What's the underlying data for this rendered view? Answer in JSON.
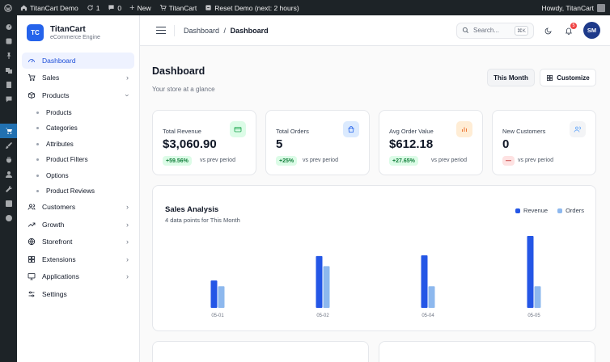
{
  "adminbar": {
    "site_name": "TitanCart Demo",
    "updates_count": "1",
    "comments_count": "0",
    "new_label": "New",
    "titancart_label": "TitanCart",
    "reset_label": "Reset Demo (next: 2 hours)",
    "howdy": "Howdy, TitanCart"
  },
  "wprail": {
    "icons": [
      "dashboard-icon",
      "site-icon",
      "pin-icon",
      "media-icon",
      "pages-icon",
      "comments-icon",
      "cart-icon",
      "brush-icon",
      "plugins-icon",
      "users-icon",
      "tools-icon",
      "settings-icon",
      "play-icon"
    ],
    "active_index": 6
  },
  "brand": {
    "logo": "TC",
    "name": "TitanCart",
    "subtitle": "eCommerce Engine"
  },
  "sidebar": {
    "items": [
      {
        "label": "Dashboard",
        "icon": "gauge-icon"
      },
      {
        "label": "Sales",
        "icon": "cart-icon"
      },
      {
        "label": "Products",
        "icon": "box-icon"
      },
      {
        "label": "Customers",
        "icon": "users-icon"
      },
      {
        "label": "Growth",
        "icon": "trend-icon"
      },
      {
        "label": "Storefront",
        "icon": "globe-icon"
      },
      {
        "label": "Extensions",
        "icon": "grid-icon"
      },
      {
        "label": "Applications",
        "icon": "monitor-icon"
      },
      {
        "label": "Settings",
        "icon": "sliders-icon"
      }
    ],
    "products_sub": [
      "Products",
      "Categories",
      "Attributes",
      "Product Filters",
      "Options",
      "Product Reviews"
    ]
  },
  "topbar": {
    "breadcrumb_root": "Dashboard",
    "breadcrumb_sep": "/",
    "breadcrumb_current": "Dashboard",
    "search_placeholder": "Search...",
    "search_kbd": "⌘K",
    "notification_count": "5",
    "avatar_initials": "SM"
  },
  "page": {
    "title": "Dashboard",
    "subtitle": "Your store at a glance",
    "period_button": "This Month",
    "customize_button": "Customize"
  },
  "stats": [
    {
      "label": "Total Revenue",
      "value": "$3,060.90",
      "change": "+59.56%",
      "vs": "vs prev period",
      "icon": "wallet-icon",
      "icon_color": "#16a34a",
      "icon_bg": "#dcfce7"
    },
    {
      "label": "Total Orders",
      "value": "5",
      "change": "+25%",
      "vs": "vs prev period",
      "icon": "bag-icon",
      "icon_color": "#2563eb",
      "icon_bg": "#dbeafe"
    },
    {
      "label": "Avg Order Value",
      "value": "$612.18",
      "change": "+27.65%",
      "vs": "vs prev period",
      "icon": "bar-chart-icon",
      "icon_color": "#ea580c",
      "icon_bg": "#ffedd5"
    },
    {
      "label": "New Customers",
      "value": "0",
      "change": "—",
      "vs": "vs prev period",
      "icon": "users-icon",
      "icon_color": "#60a5fa",
      "icon_bg": "#f3f4f6"
    }
  ],
  "sales_chart": {
    "title": "Sales Analysis",
    "subtitle": "4 data points for This Month",
    "colors": {
      "revenue": "#2456e6",
      "orders": "#8db8ee"
    }
  },
  "chart_data": {
    "type": "bar",
    "title": "Sales Analysis",
    "categories": [
      "05-01",
      "05-02",
      "05-04",
      "05-05"
    ],
    "series": [
      {
        "name": "Revenue",
        "values": [
          0.38,
          0.72,
          0.73,
          1.0
        ]
      },
      {
        "name": "Orders",
        "values": [
          0.3,
          0.58,
          0.3,
          0.3
        ]
      }
    ],
    "ylim": [
      0,
      1
    ],
    "grid": false,
    "legend": "top-right"
  }
}
